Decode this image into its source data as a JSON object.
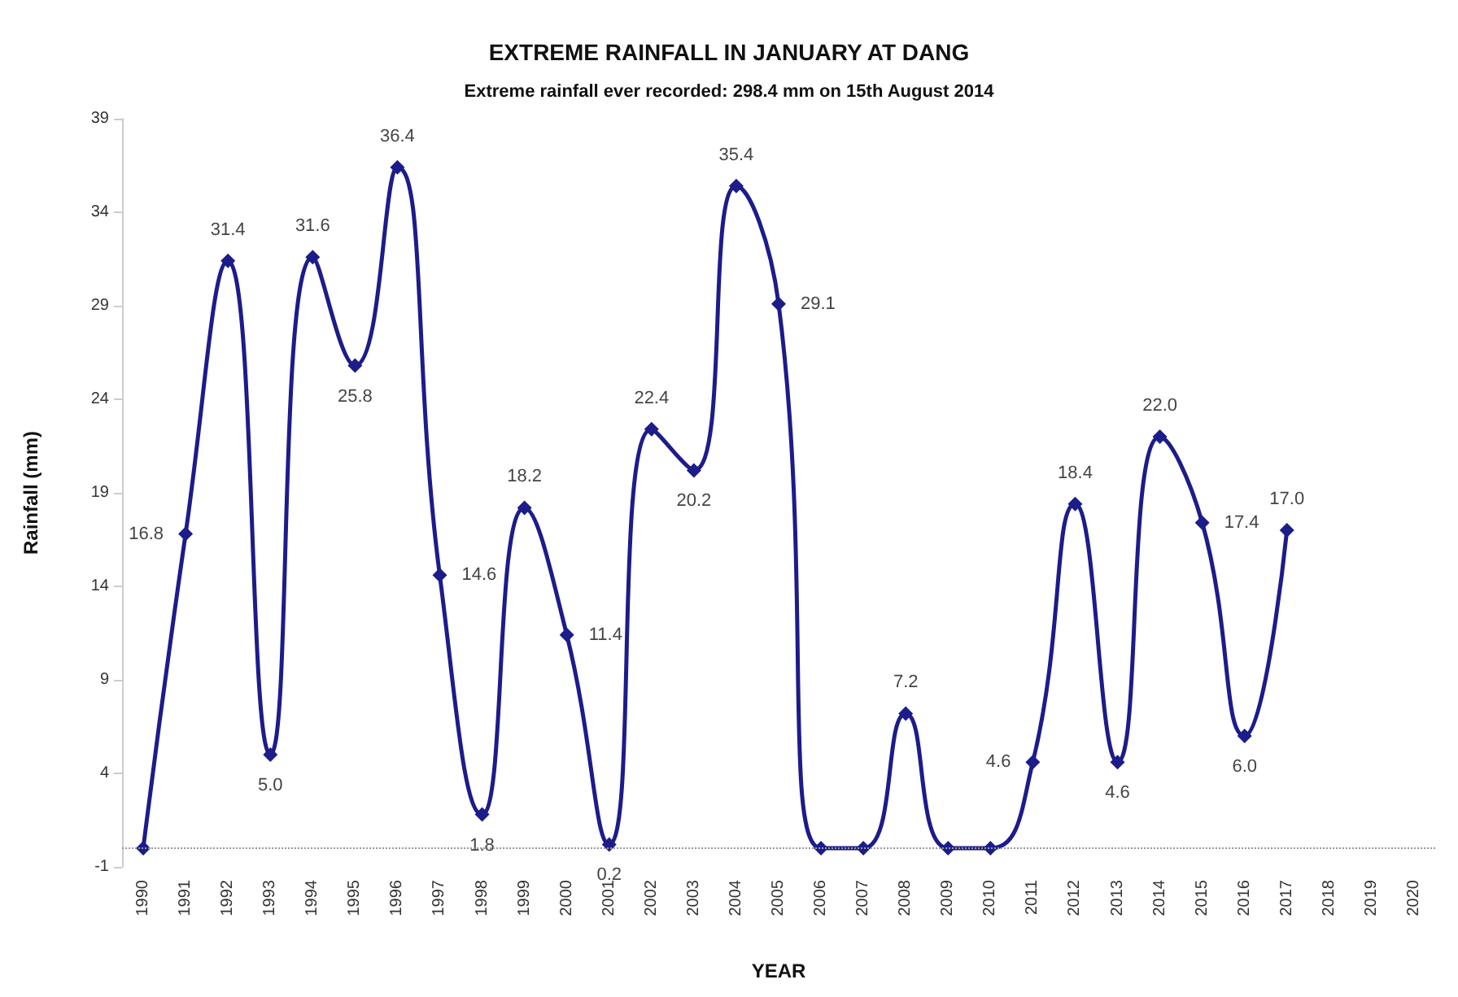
{
  "chart_data": {
    "type": "line",
    "title": "EXTREME RAINFALL IN JANUARY AT DANG",
    "subtitle": "Extreme rainfall ever recorded: 298.4 mm on 15th August 2014",
    "xlabel": "YEAR",
    "ylabel": "Rainfall (mm)",
    "categories": [
      "1990",
      "1991",
      "1992",
      "1993",
      "1994",
      "1995",
      "1996",
      "1997",
      "1998",
      "1999",
      "2000",
      "2001",
      "2002",
      "2003",
      "2004",
      "2005",
      "2006",
      "2007",
      "2008",
      "2009",
      "2010",
      "2011",
      "2012",
      "2013",
      "2014",
      "2015",
      "2016",
      "2017",
      "2018",
      "2019",
      "2020"
    ],
    "series": [
      {
        "color": "#1c1c8a",
        "values": [
          0,
          16.8,
          31.4,
          5.0,
          31.6,
          25.8,
          36.4,
          14.6,
          1.8,
          18.2,
          11.4,
          0.2,
          22.4,
          20.2,
          35.4,
          29.1,
          0,
          0,
          7.2,
          0,
          0,
          4.6,
          18.4,
          4.6,
          22.0,
          17.4,
          6.0,
          17.0,
          null,
          null,
          null
        ],
        "value_labels": [
          null,
          "16.8",
          "31.4",
          "5.0",
          "31.6",
          "25.8",
          "36.4",
          "14.6",
          "1.8",
          "18.2",
          "11.4",
          "0.2",
          "22.4",
          "20.2",
          "35.4",
          "29.1",
          null,
          null,
          "7.2",
          null,
          null,
          "4.6",
          "18.4",
          "4.6",
          "22.0",
          "17.4",
          "6.0",
          "17.0",
          null,
          null,
          null
        ]
      }
    ],
    "ylim": [
      -1,
      39
    ],
    "yticks": [
      -1,
      4,
      9,
      14,
      19,
      24,
      29,
      34,
      39
    ],
    "ref_lines": [
      {
        "axis": "y",
        "value": 0,
        "color": "#999999",
        "line_style": "dotted"
      }
    ],
    "grid": false,
    "marker": "diamond",
    "line_style": "solid"
  }
}
